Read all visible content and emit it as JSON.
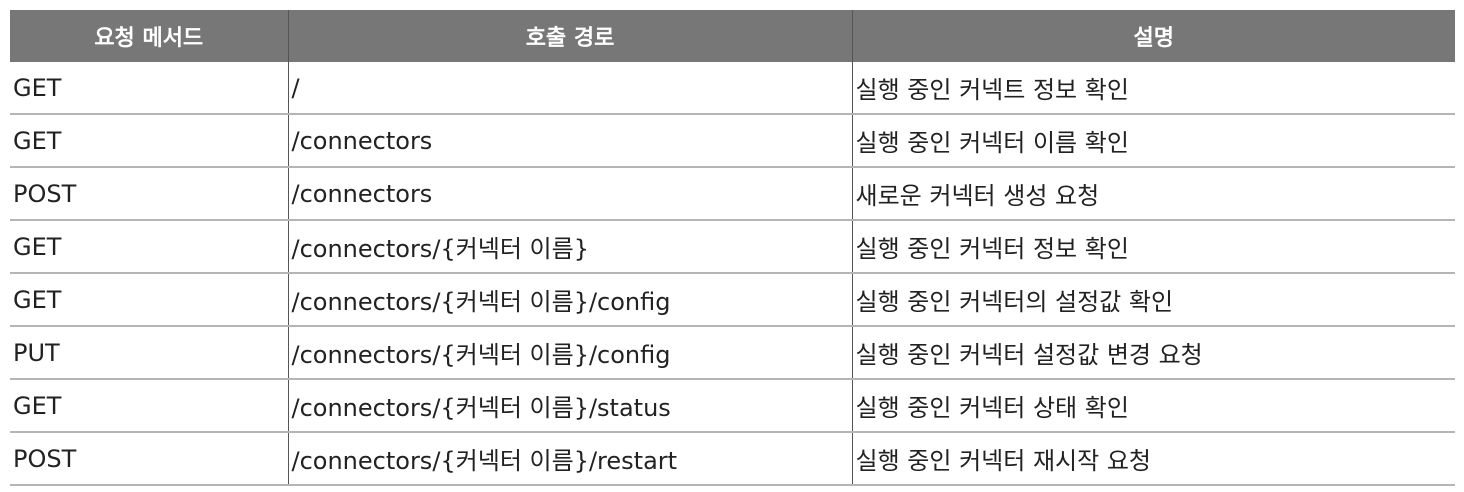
{
  "headers": [
    "요청 메서드",
    "호출 경로",
    "설명"
  ],
  "rows": [
    {
      "method": "GET",
      "path": "/",
      "description": "실행 중인 커넥트 정보 확인"
    },
    {
      "method": "GET",
      "path": "/connectors",
      "description": "실행 중인 커넥터 이름 확인"
    },
    {
      "method": "POST",
      "path": "/connectors",
      "description": "새로운 커넥터 생성 요청"
    },
    {
      "method": "GET",
      "path": "/connectors/{커넥터 이름}",
      "description": "실행 중인 커넥터 정보 확인"
    },
    {
      "method": "GET",
      "path": "/connectors/{커넥터 이름}/config",
      "description": "실행 중인 커넥터의 설정값 확인"
    },
    {
      "method": "PUT",
      "path": "/connectors/{커넥터 이름}/config",
      "description": "실행 중인 커넥터 설정값 변경 요청"
    },
    {
      "method": "GET",
      "path": "/connectors/{커넥터 이름}/status",
      "description": "실행 중인 커넥터 상태 확인"
    },
    {
      "method": "POST",
      "path": "/connectors/{커넥터 이름}/restart",
      "description": "실행 중인 커넥터 재시작 요청"
    }
  ],
  "colors": {
    "header_bg": "#777777",
    "header_text": "#ffffff",
    "row_border": "#b5b5b5"
  }
}
